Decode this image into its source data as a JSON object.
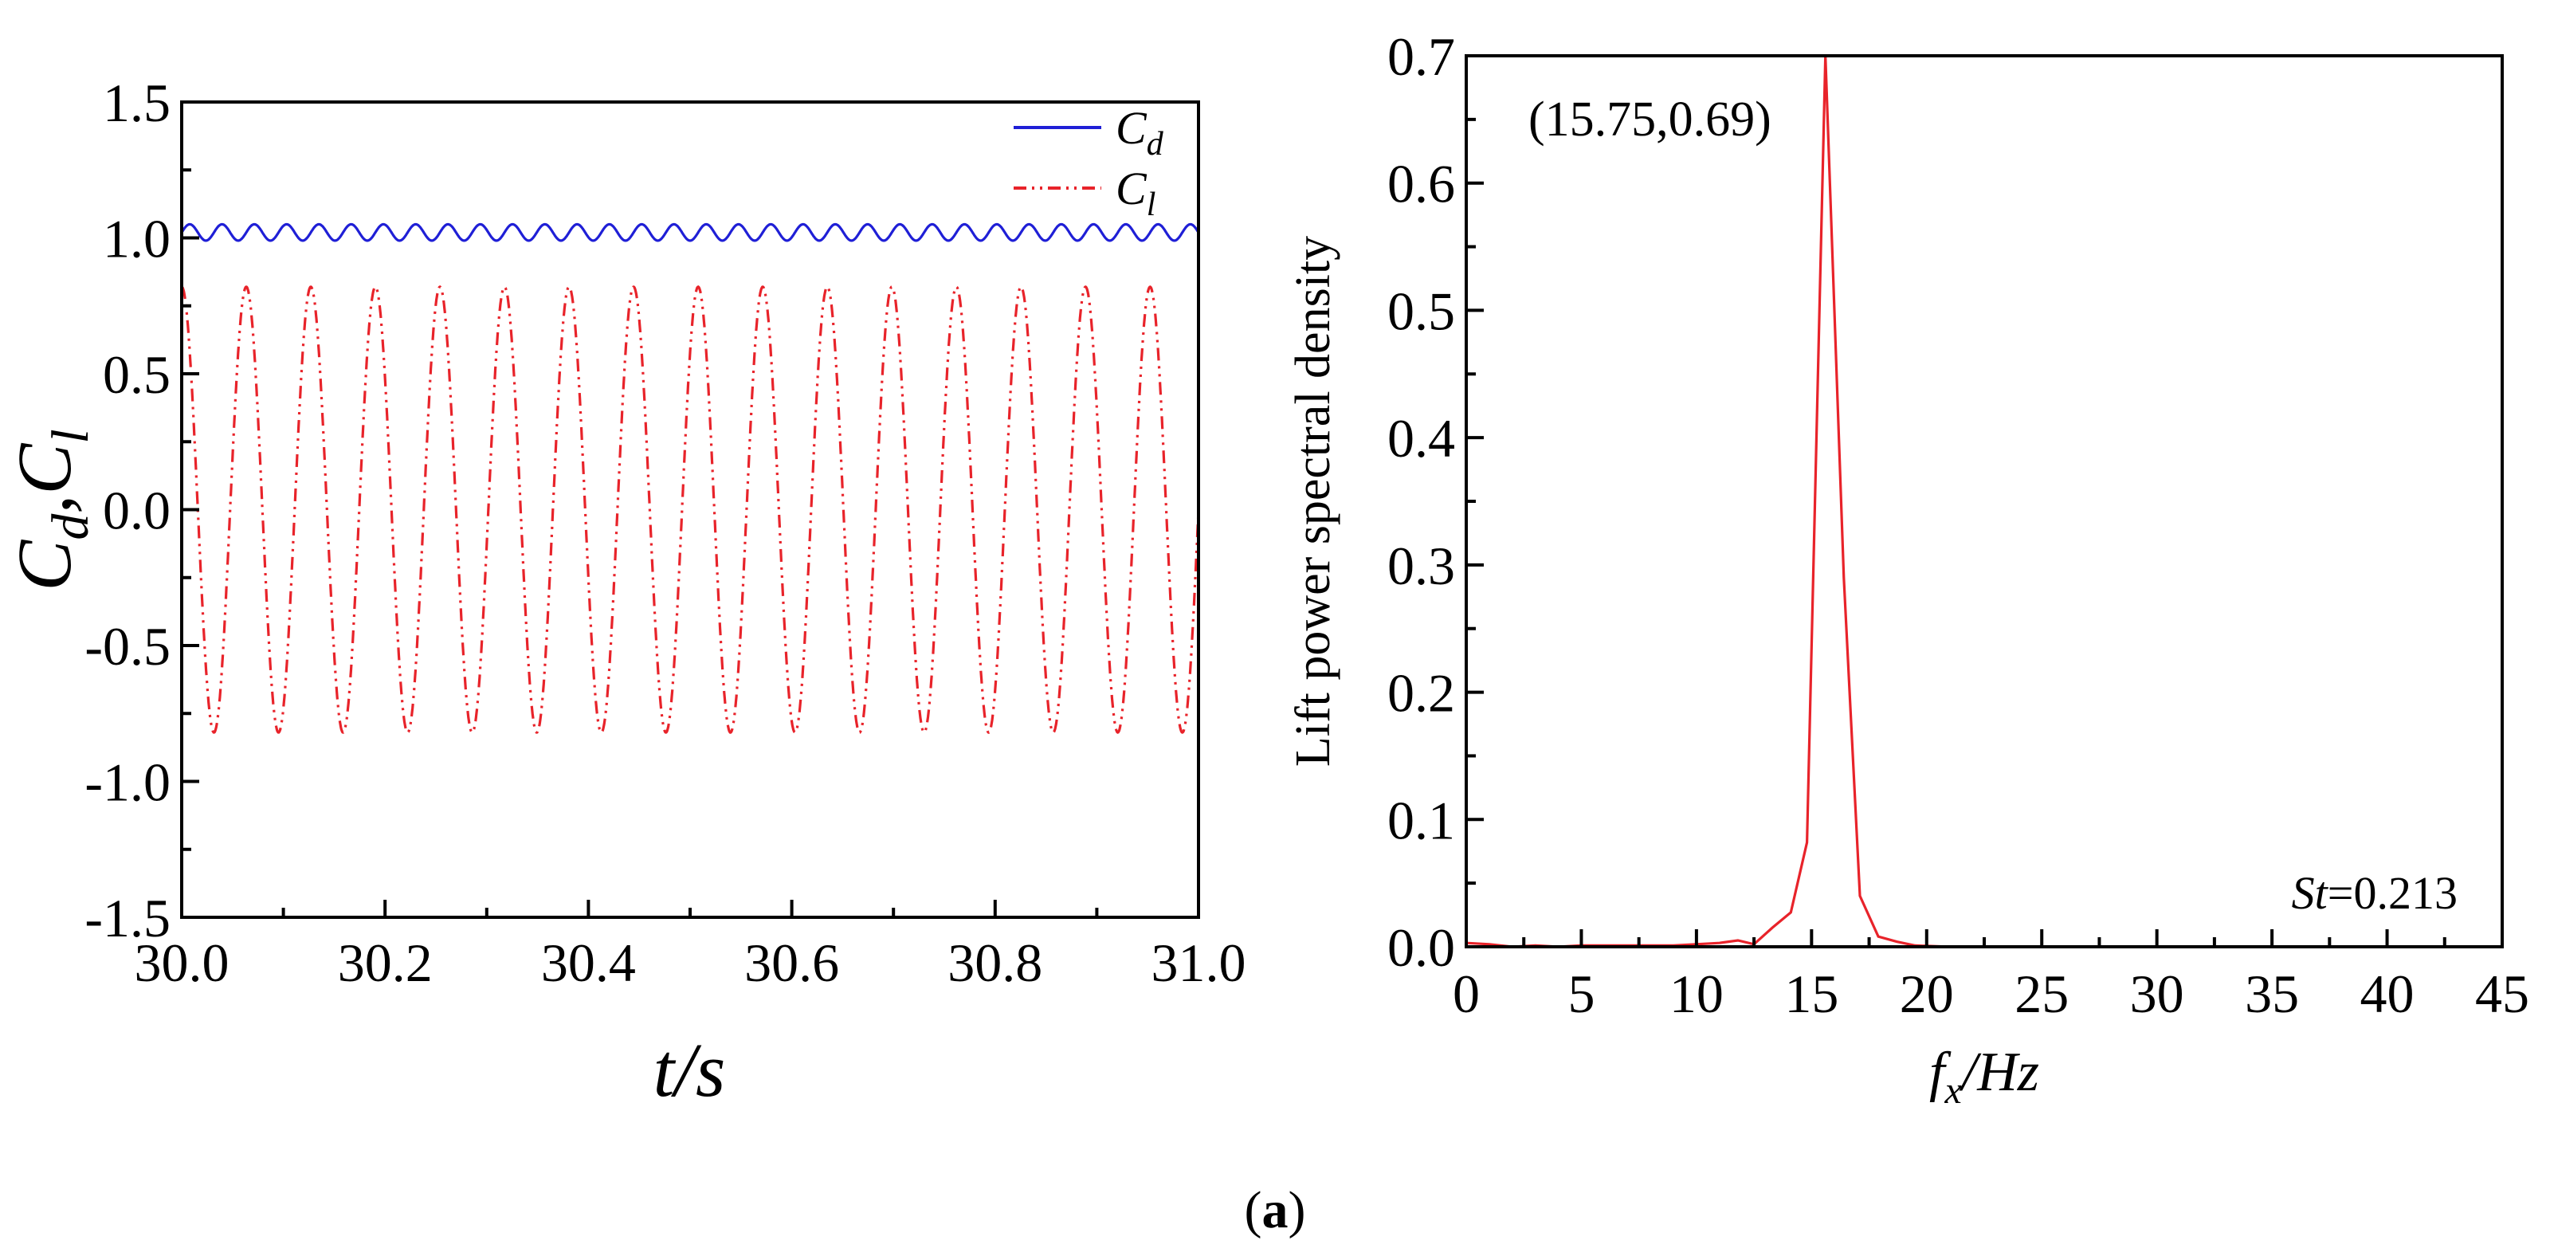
{
  "figure_label": {
    "open": "(",
    "letter": "a",
    "close": ")"
  },
  "chart_data": [
    {
      "type": "line",
      "x_ticks": [
        "30.0",
        "30.2",
        "30.4",
        "30.6",
        "30.8",
        "31.0"
      ],
      "y_ticks": [
        "1.5",
        "1.0",
        "0.5",
        "0.0",
        "-0.5",
        "-1.0",
        "-1.5"
      ],
      "xlim": [
        30.0,
        31.0
      ],
      "ylim": [
        -1.5,
        1.5
      ],
      "xlabel": {
        "t": "t",
        "slash": "/",
        "s": "s"
      },
      "ylabel": {
        "c1": "C",
        "sub1": "d",
        "comma": ",",
        "c2": "C",
        "sub2": "l"
      },
      "legend": [
        {
          "base": "C",
          "sub": "d"
        },
        {
          "base": "C",
          "sub": "l"
        }
      ],
      "series": [
        {
          "name": "Cd",
          "color": "#1f1fd6",
          "style": "solid",
          "mean": 1.02,
          "amplitude": 0.03,
          "frequency_hz": 31.5,
          "x_range": [
            30.0,
            31.0
          ]
        },
        {
          "name": "Cl",
          "color": "#e8232a",
          "style": "dash-dot-dot",
          "mean": 0.0,
          "amplitude": 0.82,
          "frequency_hz": 15.75,
          "phase": 1.57,
          "x_range": [
            30.0,
            31.0
          ]
        }
      ]
    },
    {
      "type": "line",
      "x_ticks": [
        "0",
        "5",
        "10",
        "15",
        "20",
        "25",
        "30",
        "35",
        "40",
        "45"
      ],
      "y_ticks": [
        "0.7",
        "0.6",
        "0.5",
        "0.4",
        "0.3",
        "0.2",
        "0.1",
        "0.0"
      ],
      "xlim": [
        0,
        45
      ],
      "ylim": [
        0,
        0.7
      ],
      "xlabel": {
        "f": "f",
        "sub": "x",
        "rest": "/Hz"
      },
      "ylabel": "Lift power spectral density",
      "annotation_peak": "(15.75,0.69)",
      "annotation_st": {
        "st": "St",
        "value": "=0.213"
      },
      "series": [
        {
          "name": "Lift PSD",
          "color": "#e8232a",
          "x": [
            0,
            1,
            2,
            3,
            4,
            5,
            6,
            7,
            8,
            9,
            10,
            11,
            11.8,
            12.5,
            13.3,
            14.1,
            14.8,
            15.6,
            16.4,
            17.1,
            17.9,
            18.7,
            19.5,
            21,
            25,
            30,
            35,
            40,
            45
          ],
          "y": [
            0.003,
            0.002,
            0.0,
            0.001,
            0.0,
            0.001,
            0.001,
            0.001,
            0.001,
            0.001,
            0.002,
            0.003,
            0.005,
            0.002,
            0.015,
            0.027,
            0.082,
            0.7,
            0.29,
            0.04,
            0.008,
            0.004,
            0.001,
            0.0,
            0.0,
            0.0,
            0.0,
            0.0,
            0.0
          ]
        }
      ]
    }
  ]
}
